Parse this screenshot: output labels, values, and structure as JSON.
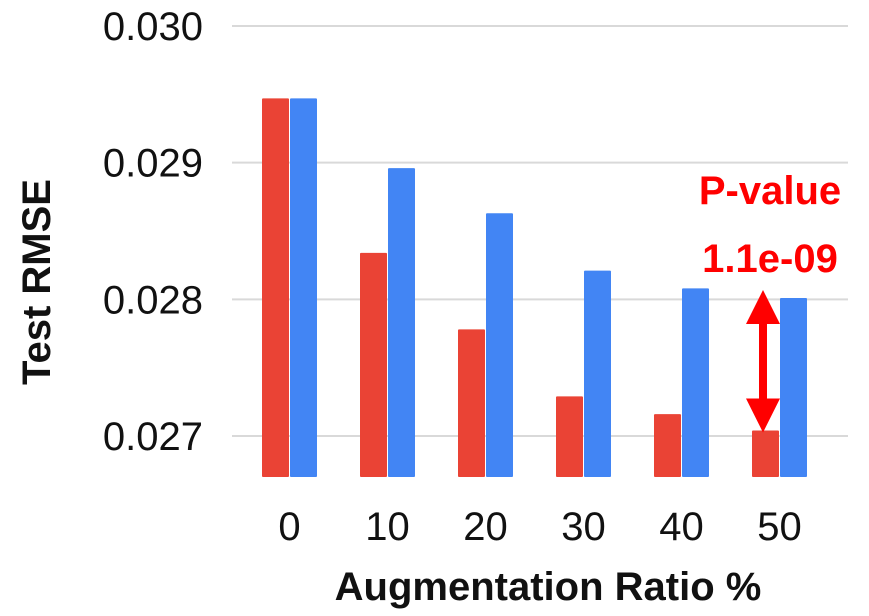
{
  "chart_data": {
    "type": "bar",
    "categories": [
      "0",
      "10",
      "20",
      "30",
      "40",
      "50"
    ],
    "series": [
      {
        "color": "#ea4335",
        "values": [
          0.02947,
          0.02834,
          0.02778,
          0.02729,
          0.02716,
          0.02704
        ]
      },
      {
        "color": "#4285f4",
        "values": [
          0.02947,
          0.02896,
          0.02863,
          0.02821,
          0.02808,
          0.02801
        ]
      }
    ],
    "xlabel": "Augmentation Ratio %",
    "ylabel": "Test RMSE",
    "ylim": [
      0.0267,
      0.03
    ],
    "yticks": [
      "0.027",
      "0.028",
      "0.029",
      "0.030"
    ],
    "grid": true,
    "legend": "none",
    "annotation": {
      "line1": "P-value",
      "line2": "1.1e-09",
      "color": "#ff0000",
      "category": "50"
    }
  }
}
